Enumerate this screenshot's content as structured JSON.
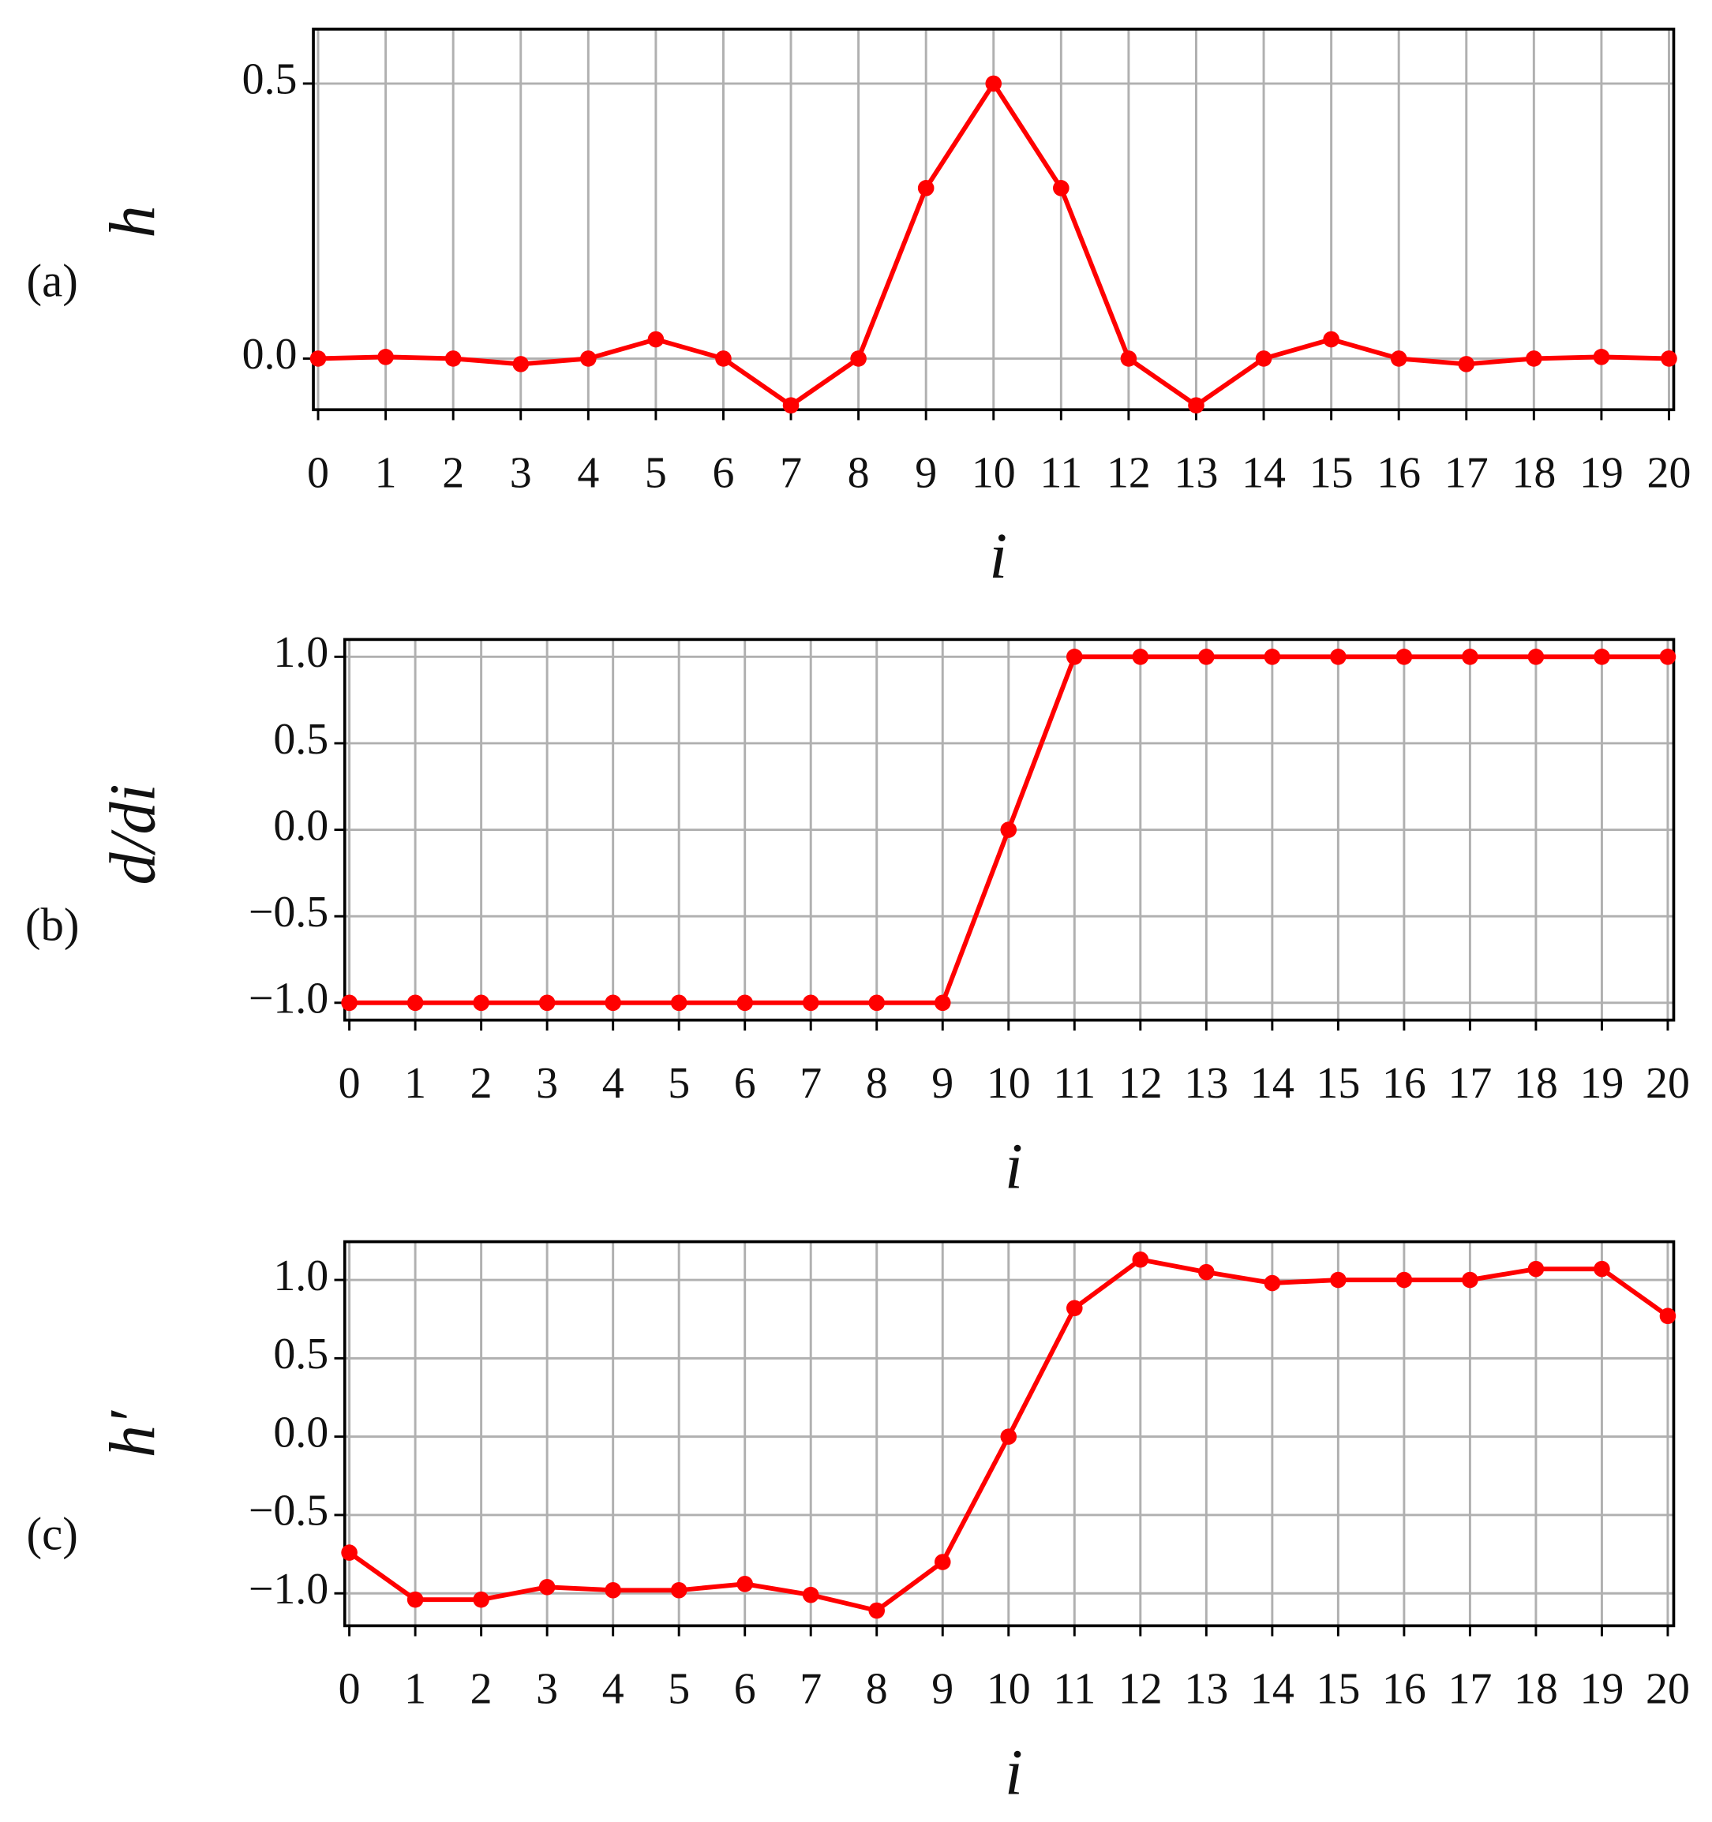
{
  "chart_data": [
    {
      "type": "line",
      "panel_label": "(a)",
      "ylabel": "h",
      "xlabel": "i",
      "color": "#ff0000",
      "grid": true,
      "x": [
        0,
        1,
        2,
        3,
        4,
        5,
        6,
        7,
        8,
        9,
        10,
        11,
        12,
        13,
        14,
        15,
        16,
        17,
        18,
        19,
        20
      ],
      "values": [
        0,
        0.003,
        0,
        -0.01,
        0,
        0.035,
        0,
        -0.085,
        0,
        0.31,
        0.5,
        0.31,
        0,
        -0.085,
        0,
        0.035,
        0,
        -0.01,
        0,
        0.003,
        0
      ],
      "xlim": [
        -0.07,
        20.07
      ],
      "xticks": [
        0,
        1,
        2,
        3,
        4,
        5,
        6,
        7,
        8,
        9,
        10,
        11,
        12,
        13,
        14,
        15,
        16,
        17,
        18,
        19,
        20
      ],
      "ylim": [
        -0.093,
        0.599
      ],
      "yticks": [
        {
          "value": 0,
          "label": "0.0"
        },
        0.5
      ]
    },
    {
      "type": "line",
      "panel_label": "(b)",
      "ylabel": "d/di",
      "xlabel": "i",
      "color": "#ff0000",
      "grid": true,
      "x": [
        0,
        1,
        2,
        3,
        4,
        5,
        6,
        7,
        8,
        9,
        10,
        11,
        12,
        13,
        14,
        15,
        16,
        17,
        18,
        19,
        20
      ],
      "values": [
        -1,
        -1,
        -1,
        -1,
        -1,
        -1,
        -1,
        -1,
        -1,
        -1,
        0,
        1,
        1,
        1,
        1,
        1,
        1,
        1,
        1,
        1,
        1
      ],
      "xlim": [
        -0.07,
        20.09
      ],
      "xticks": [
        0,
        1,
        2,
        3,
        4,
        5,
        6,
        7,
        8,
        9,
        10,
        11,
        12,
        13,
        14,
        15,
        16,
        17,
        18,
        19,
        20
      ],
      "ylim": [
        -1.1,
        1.1
      ],
      "yticks": [
        {
          "value": -1,
          "label": "−1.0"
        },
        {
          "value": -0.5,
          "label": "−0.5"
        },
        {
          "value": 0,
          "label": "0.0"
        },
        0.5,
        {
          "value": 1,
          "label": "1.0"
        }
      ]
    },
    {
      "type": "line",
      "panel_label": "(c)",
      "ylabel": "h′",
      "xlabel": "i",
      "color": "#ff0000",
      "grid": true,
      "x": [
        0,
        1,
        2,
        3,
        4,
        5,
        6,
        7,
        8,
        9,
        10,
        11,
        12,
        13,
        14,
        15,
        16,
        17,
        18,
        19,
        20
      ],
      "values": [
        -0.74,
        -1.04,
        -1.04,
        -0.96,
        -0.98,
        -0.98,
        -0.94,
        -1.01,
        -1.11,
        -0.8,
        0,
        0.82,
        1.13,
        1.05,
        0.98,
        1,
        1,
        1,
        1.07,
        1.07,
        0.77
      ],
      "xlim": [
        -0.07,
        20.09
      ],
      "xticks": [
        0,
        1,
        2,
        3,
        4,
        5,
        6,
        7,
        8,
        9,
        10,
        11,
        12,
        13,
        14,
        15,
        16,
        17,
        18,
        19,
        20
      ],
      "ylim": [
        -1.207,
        1.244
      ],
      "yticks": [
        {
          "value": -1,
          "label": "−1.0"
        },
        {
          "value": -0.5,
          "label": "−0.5"
        },
        {
          "value": 0,
          "label": "0.0"
        },
        0.5,
        {
          "value": 1,
          "label": "1.0"
        }
      ]
    }
  ]
}
